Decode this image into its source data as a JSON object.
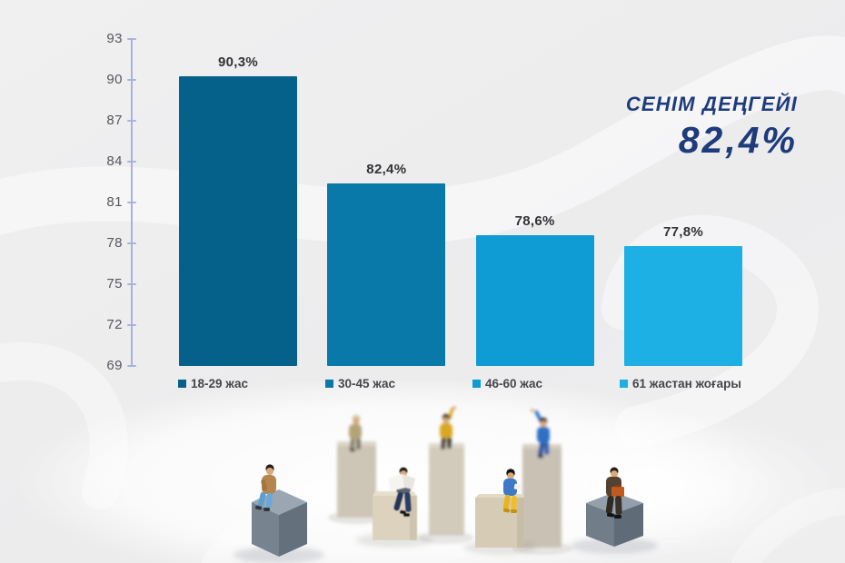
{
  "title": {
    "text": "СЕНІМ ДЕҢГЕЙІ",
    "value": "82,4%",
    "color": "#1e3b7b"
  },
  "chart_data": {
    "type": "bar",
    "title": "СЕНІМ ДЕҢГЕЙІ 82,4%",
    "categories": [
      "18-29 жас",
      "30-45 жас",
      "46-60 жас",
      "61 жастан жоғары"
    ],
    "values": [
      90.3,
      82.4,
      78.6,
      77.8
    ],
    "value_labels": [
      "90,3%",
      "82,4%",
      "78,6%",
      "77,8%"
    ],
    "bar_colors": [
      "#06618a",
      "#0879a8",
      "#0f9cd5",
      "#1cb0e4"
    ],
    "xlabel": "",
    "ylabel": "",
    "ylim": [
      69,
      93
    ],
    "yticks": [
      93,
      90,
      87,
      84,
      81,
      78,
      75,
      72,
      69
    ],
    "grid": false,
    "legend_position": "bottom",
    "axis_color": "#a8b3dc",
    "decimal_separator": ","
  },
  "legend": {
    "items": [
      {
        "label": "18-29 жас",
        "color": "#06618a"
      },
      {
        "label": "30-45 жас",
        "color": "#0879a8"
      },
      {
        "label": "46-60 жас",
        "color": "#0f9cd5"
      },
      {
        "label": "61 жастан жоғары",
        "color": "#1cb0e4"
      }
    ]
  },
  "photo": {
    "alt": "Miniature figurines seated on wooden blocks of different heights"
  }
}
